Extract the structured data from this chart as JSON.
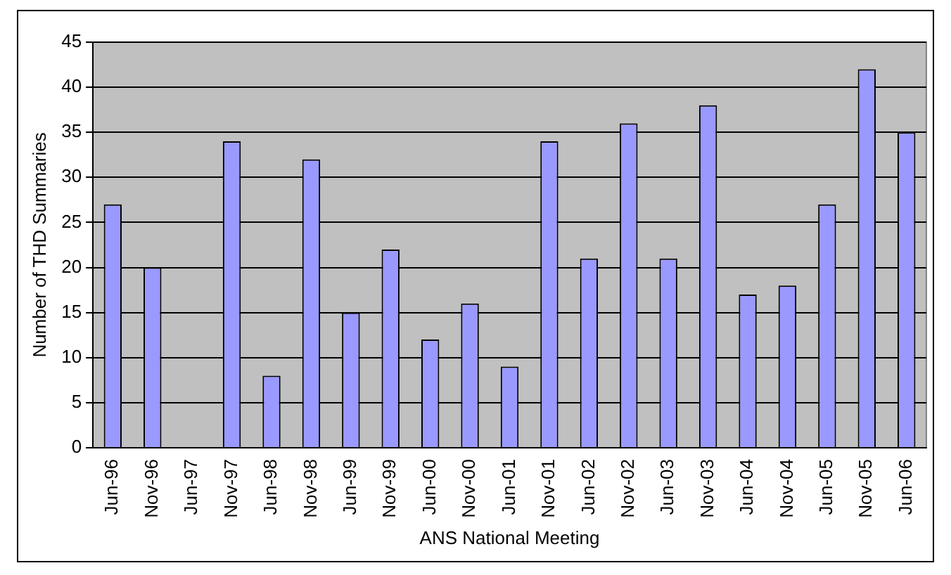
{
  "chart_data": {
    "type": "bar",
    "xlabel": "ANS National Meeting",
    "ylabel": "Number of THD Summaries",
    "categories": [
      "Jun-96",
      "Nov-96",
      "Jun-97",
      "Nov-97",
      "Jun-98",
      "Nov-98",
      "Jun-99",
      "Nov-99",
      "Jun-00",
      "Nov-00",
      "Jun-01",
      "Nov-01",
      "Jun-02",
      "Nov-02",
      "Jun-03",
      "Nov-03",
      "Jun-04",
      "Nov-04",
      "Jun-05",
      "Nov-05",
      "Jun-06"
    ],
    "values": [
      27,
      20,
      null,
      34,
      8,
      32,
      15,
      22,
      12,
      16,
      9,
      34,
      21,
      36,
      21,
      38,
      17,
      18,
      27,
      42,
      35
    ],
    "color": "#9999ff",
    "ylim": [
      0,
      45
    ],
    "yticks": [
      0,
      5,
      10,
      15,
      20,
      25,
      30,
      35,
      40,
      45
    ],
    "grid": "y",
    "legend": false
  }
}
